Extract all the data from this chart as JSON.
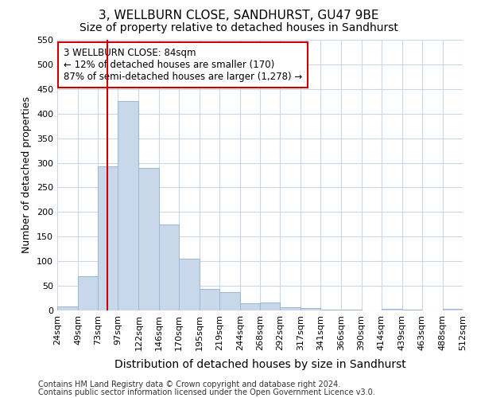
{
  "title": "3, WELLBURN CLOSE, SANDHURST, GU47 9BE",
  "subtitle": "Size of property relative to detached houses in Sandhurst",
  "xlabel": "Distribution of detached houses by size in Sandhurst",
  "ylabel": "Number of detached properties",
  "footnote1": "Contains HM Land Registry data © Crown copyright and database right 2024.",
  "footnote2": "Contains public sector information licensed under the Open Government Licence v3.0.",
  "annotation_title": "3 WELLBURN CLOSE: 84sqm",
  "annotation_line1": "← 12% of detached houses are smaller (170)",
  "annotation_line2": "87% of semi-detached houses are larger (1,278) →",
  "bar_color": "#c8d8ea",
  "bar_edge_color": "#9ab8d0",
  "vline_color": "#cc0000",
  "vline_x": 84,
  "bin_edges": [
    24,
    49,
    73,
    97,
    122,
    146,
    170,
    195,
    219,
    244,
    268,
    292,
    317,
    341,
    366,
    390,
    414,
    439,
    463,
    488,
    512
  ],
  "bar_heights": [
    8,
    70,
    292,
    425,
    290,
    175,
    105,
    43,
    38,
    15,
    16,
    7,
    5,
    2,
    2,
    0,
    4,
    2,
    0,
    3
  ],
  "xlim": [
    24,
    512
  ],
  "ylim": [
    0,
    550
  ],
  "yticks": [
    0,
    50,
    100,
    150,
    200,
    250,
    300,
    350,
    400,
    450,
    500,
    550
  ],
  "background_color": "#ffffff",
  "plot_bg_color": "#ffffff",
  "grid_color": "#c8d8ea",
  "title_fontsize": 11,
  "subtitle_fontsize": 10,
  "xlabel_fontsize": 10,
  "ylabel_fontsize": 9,
  "tick_fontsize": 8,
  "annotation_fontsize": 8.5,
  "footnote_fontsize": 7
}
